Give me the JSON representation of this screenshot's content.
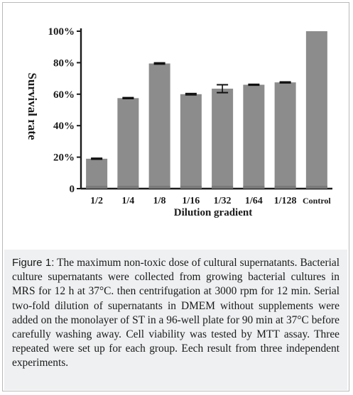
{
  "chart_data": {
    "type": "bar",
    "title": "",
    "xlabel": "Dilution gradient",
    "ylabel": "Survival rate",
    "categories": [
      "1/2",
      "1/4",
      "1/8",
      "1/16",
      "1/32",
      "1/64",
      "1/128",
      "Control"
    ],
    "values": [
      19,
      57.5,
      79.5,
      60,
      63.5,
      66,
      67.5,
      100
    ],
    "errors": [
      0.3,
      0.3,
      0.4,
      0.4,
      2.5,
      0.3,
      0.3,
      0
    ],
    "ylim": [
      0,
      100
    ],
    "yticks": [
      0,
      20,
      40,
      60,
      80,
      100
    ],
    "ytick_labels": [
      "0",
      "20%",
      "40%",
      "60%",
      "80%",
      "100%"
    ],
    "grid": false,
    "legend": "none",
    "colors": {
      "bar": "#8c8c8c",
      "bar_base": "#7a7a7a",
      "axis": "#1a1a1a",
      "error_bar": "#111111"
    }
  },
  "caption": {
    "label": "Figure 1:",
    "text": " The maximum non-toxic dose of cultural supernatants. Bacterial culture supernatants were collected from growing bacterial cultures in MRS for 12 h at 37°C. then centrifugation at 3000 rpm for 12 min. Serial two-fold dilution of supernatants in DMEM without supplements were added on the monolayer of ST in a 96-well plate for 90 min at 37°C before carefully washing away. Cell viability was tested by MTT assay. Three repeated were set up for each group. Eech result from three independent experiments."
  }
}
